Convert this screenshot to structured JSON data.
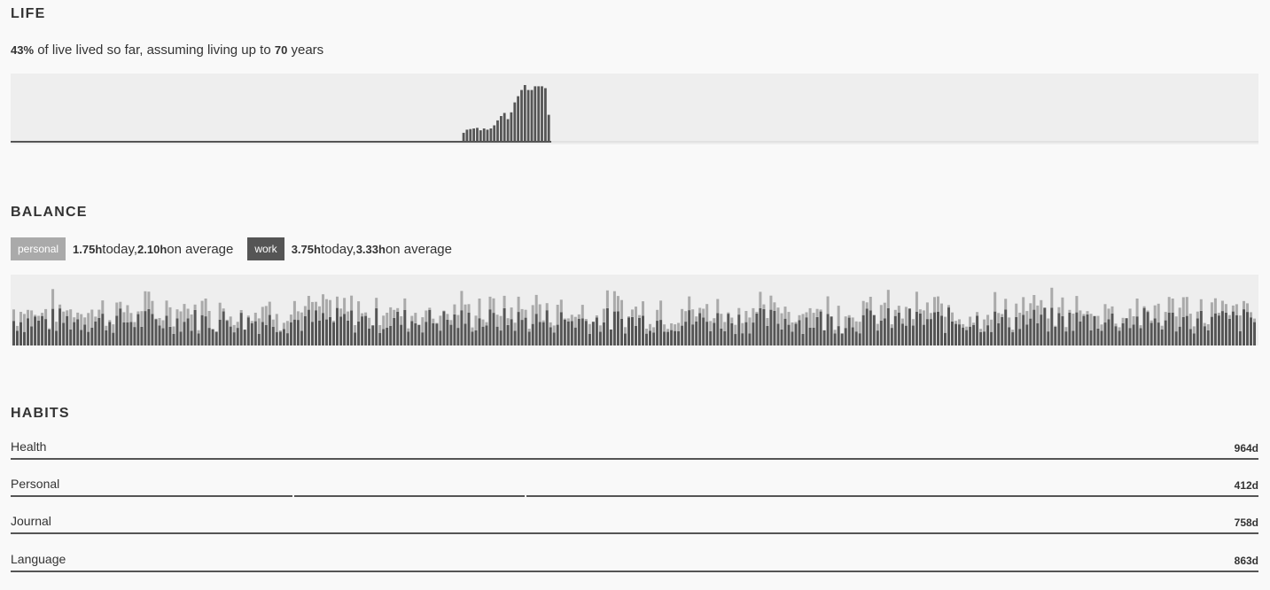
{
  "life": {
    "title": "LIFE",
    "percent": "43%",
    "text_middle": " of live lived so far, assuming living up to ",
    "years": "70",
    "text_end": " years",
    "lived_fraction": 0.433,
    "activity_start_fraction": 0.362,
    "bar_values": [
      0.13,
      0.18,
      0.19,
      0.2,
      0.21,
      0.17,
      0.2,
      0.18,
      0.2,
      0.25,
      0.33,
      0.4,
      0.45,
      0.35,
      0.46,
      0.62,
      0.72,
      0.82,
      0.9,
      0.82,
      0.82,
      0.88,
      0.88,
      0.88,
      0.85,
      0.42
    ]
  },
  "balance": {
    "title": "BALANCE",
    "personal_tag": "personal",
    "personal_today": "1.75h",
    "today_word": " today, ",
    "personal_avg": "2.10h",
    "avg_word": " on average",
    "work_tag": "work",
    "work_today": "3.75h",
    "work_avg": "3.33h",
    "colors": {
      "personal": "#aaaaaa",
      "work": "#555555"
    }
  },
  "habits": {
    "title": "HABITS",
    "items": [
      {
        "label": "Health",
        "days": "964d",
        "breaks": []
      },
      {
        "label": "Personal",
        "days": "412d",
        "breaks": [
          0.226,
          0.412
        ]
      },
      {
        "label": "Journal",
        "days": "758d",
        "breaks": []
      },
      {
        "label": "Language",
        "days": "863d",
        "breaks": []
      }
    ]
  }
}
